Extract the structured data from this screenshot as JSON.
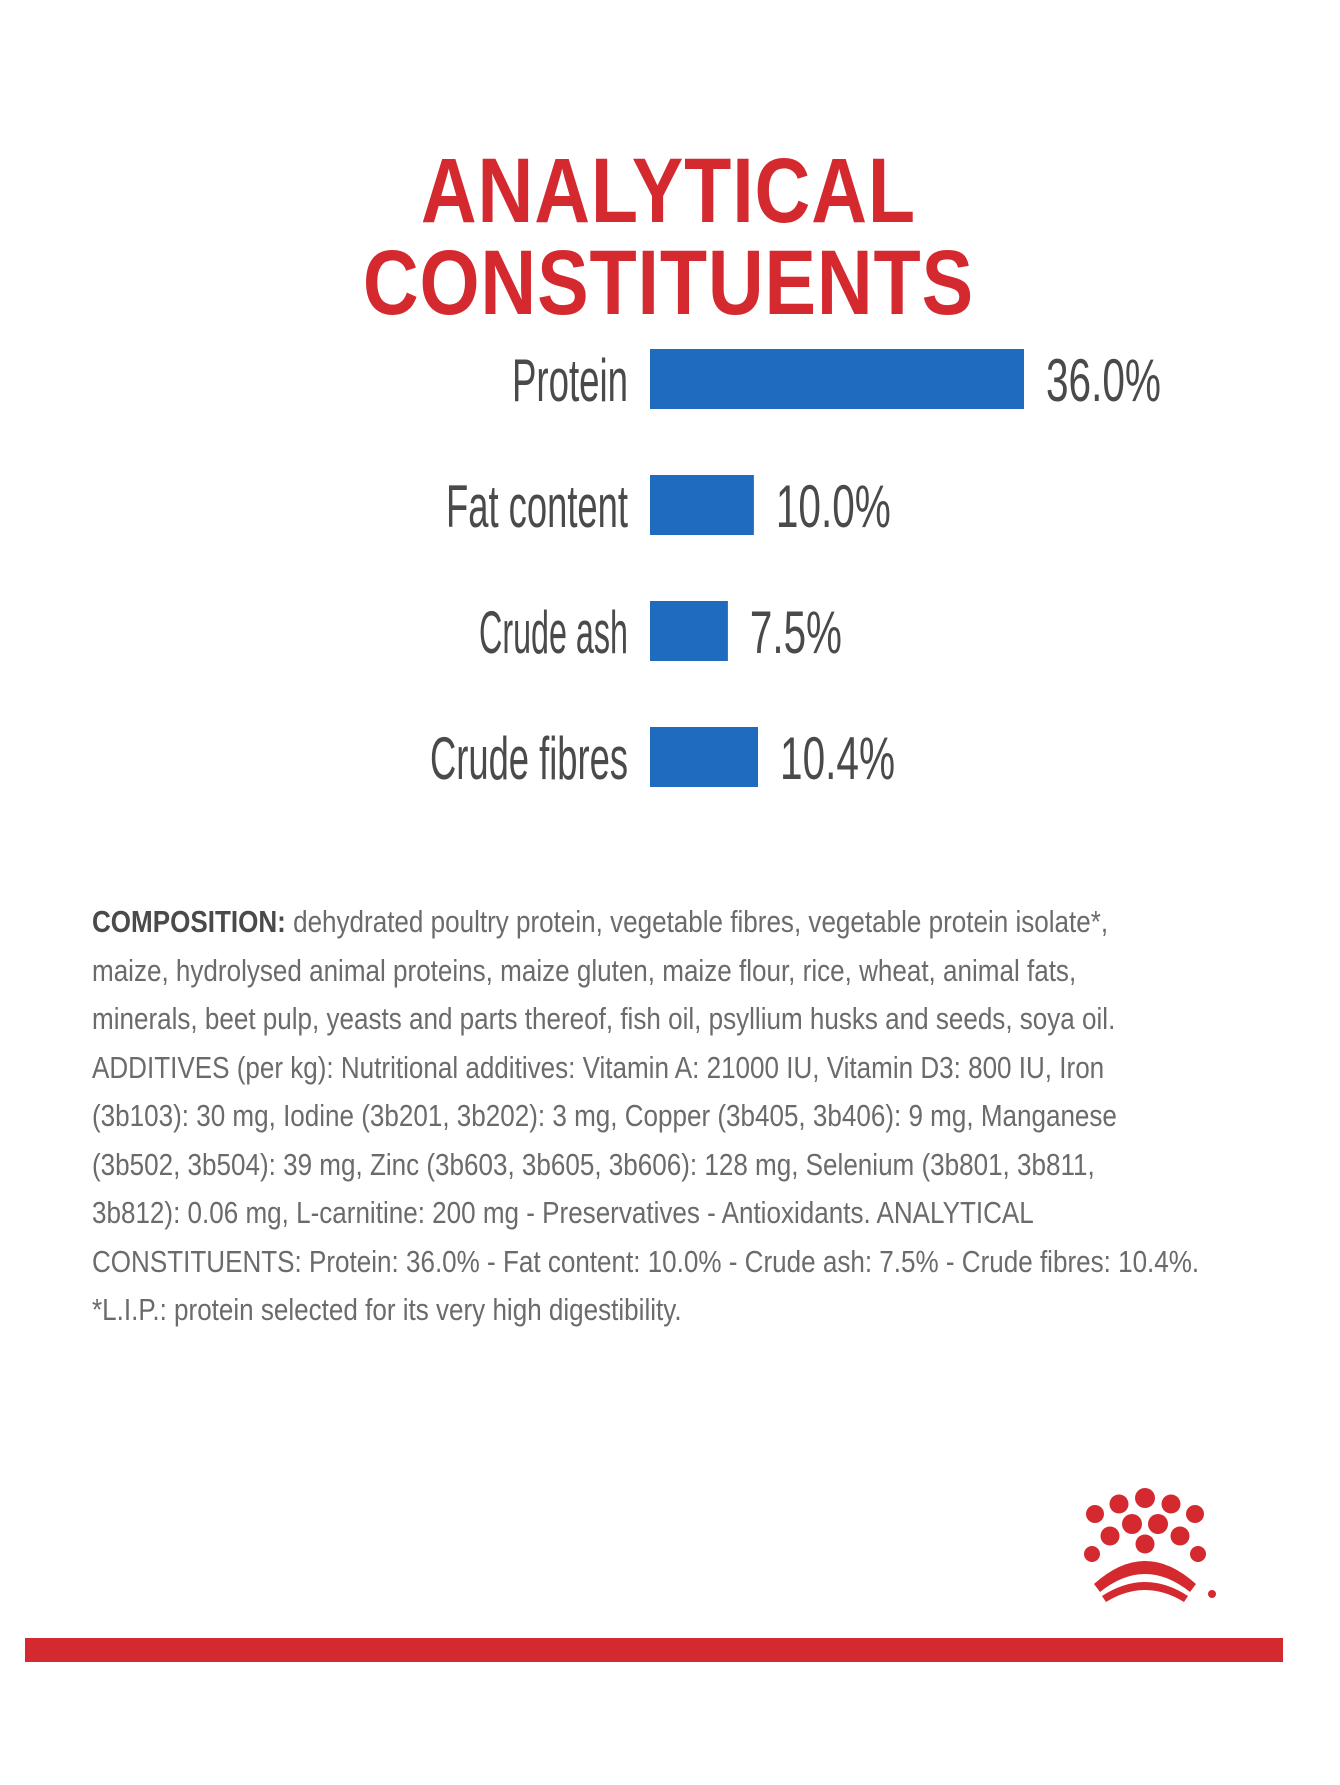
{
  "colors": {
    "title": "#d42a2f",
    "bar": "#1f6bbf",
    "label": "#4a4a4a",
    "value": "#4a4a4a",
    "footer_bar": "#d42a2f",
    "logo": "#d42a2f"
  },
  "page_title": "ANALYTICAL CONSTITUENTS",
  "chart_data": {
    "type": "bar",
    "orientation": "horizontal",
    "title": "",
    "categories": [
      "Protein",
      "Fat content",
      "Crude ash",
      "Crude fibres"
    ],
    "values": [
      36.0,
      10.0,
      7.5,
      10.4
    ],
    "value_labels": [
      "36.0%",
      "10.0%",
      "7.5%",
      "10.4%"
    ],
    "unit": "%",
    "xlim": [
      0,
      36.0
    ],
    "grid": false
  },
  "composition": {
    "lead": "COMPOSITION:",
    "lines": [
      " dehydrated poultry protein, vegetable fibres, vegetable protein isolate*,",
      "maize, hydrolysed animal proteins, maize gluten, maize flour, rice, wheat, animal fats,",
      "minerals, beet pulp, yeasts and parts thereof, fish oil, psyllium husks and seeds, soya oil.",
      "ADDITIVES (per kg): Nutritional additives: Vitamin A: 21000 IU, Vitamin D3: 800 IU, Iron",
      "(3b103): 30 mg, Iodine (3b201, 3b202): 3 mg, Copper (3b405, 3b406): 9 mg, Manganese",
      "(3b502, 3b504): 39 mg, Zinc (3b603, 3b605, 3b606): 128 mg, Selenium (3b801, 3b811,",
      "3b812): 0.06 mg, L-carnitine: 200 mg - Preservatives - Antioxidants. ANALYTICAL",
      "CONSTITUENTS: Protein: 36.0% - Fat content: 10.0% - Crude ash: 7.5% - Crude fibres: 10.4%.",
      "*L.I.P.: protein selected for its very high digestibility."
    ]
  },
  "logo": {
    "icon": "crown-logo-icon"
  }
}
